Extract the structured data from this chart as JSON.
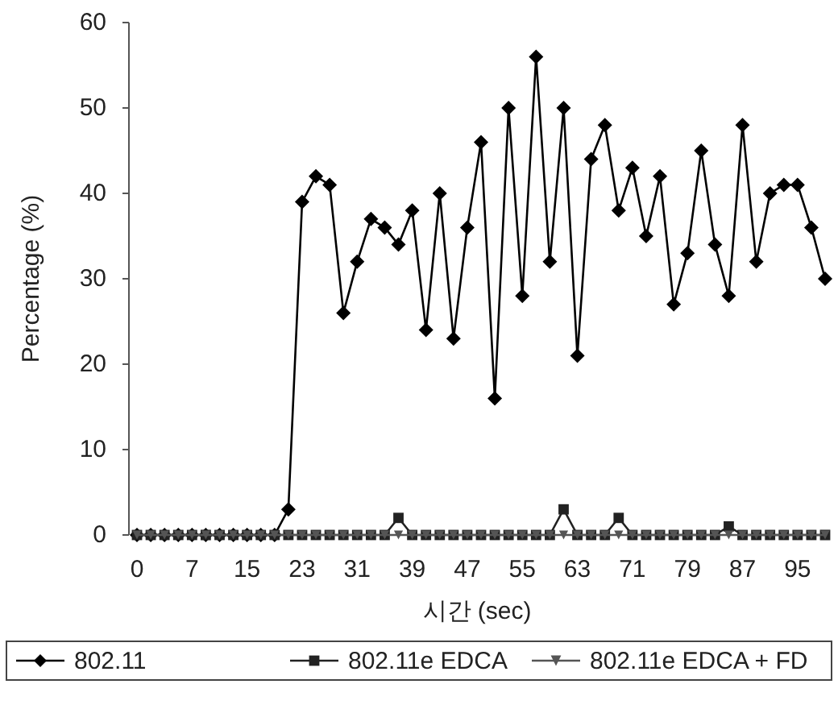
{
  "chart_data": {
    "type": "line",
    "xlabel": "시간 (sec)",
    "ylabel": "Percentage (%)",
    "ylim": [
      0,
      60
    ],
    "yticks": [
      0,
      10,
      20,
      30,
      40,
      50,
      60
    ],
    "legend": "bottom",
    "categories": [
      "0",
      null,
      null,
      null,
      "7",
      null,
      null,
      null,
      "15",
      null,
      null,
      null,
      "23",
      null,
      null,
      null,
      "31",
      null,
      null,
      null,
      "39",
      null,
      null,
      null,
      "47",
      null,
      null,
      null,
      "55",
      null,
      null,
      null,
      "63",
      null,
      null,
      null,
      "71",
      null,
      null,
      null,
      "79",
      null,
      null,
      null,
      "87",
      null,
      null,
      null,
      "95",
      null,
      null
    ],
    "series": [
      {
        "name": "802.11",
        "color": "#000000",
        "marker": "diamond",
        "values": [
          0,
          0,
          0,
          0,
          0,
          0,
          0,
          0,
          0,
          0,
          0,
          3,
          39,
          42,
          41,
          26,
          32,
          37,
          36,
          34,
          38,
          24,
          40,
          23,
          36,
          46,
          16,
          50,
          28,
          56,
          32,
          50,
          21,
          44,
          48,
          38,
          43,
          35,
          42,
          27,
          33,
          45,
          34,
          28,
          48,
          32,
          40,
          41,
          41,
          36,
          30
        ]
      },
      {
        "name": "802.11e EDCA",
        "color": "#222222",
        "marker": "square",
        "values": [
          0,
          0,
          0,
          0,
          0,
          0,
          0,
          0,
          0,
          0,
          0,
          0,
          0,
          0,
          0,
          0,
          0,
          0,
          0,
          2,
          0,
          0,
          0,
          0,
          0,
          0,
          0,
          0,
          0,
          0,
          0,
          3,
          0,
          0,
          0,
          2,
          0,
          0,
          0,
          0,
          0,
          0,
          0,
          1,
          0,
          0,
          0,
          0,
          0,
          0,
          0
        ]
      },
      {
        "name": "802.11e EDCA + FD",
        "color": "#555555",
        "marker": "triangle",
        "values": [
          0,
          0,
          0,
          0,
          0,
          0,
          0,
          0,
          0,
          0,
          0,
          0,
          0,
          0,
          0,
          0,
          0,
          0,
          0,
          0,
          0,
          0,
          0,
          0,
          0,
          0,
          0,
          0,
          0,
          0,
          0,
          0,
          0,
          0,
          0,
          0,
          0,
          0,
          0,
          0,
          0,
          0,
          0,
          0,
          0,
          0,
          0,
          0,
          0,
          0,
          0
        ]
      }
    ]
  }
}
